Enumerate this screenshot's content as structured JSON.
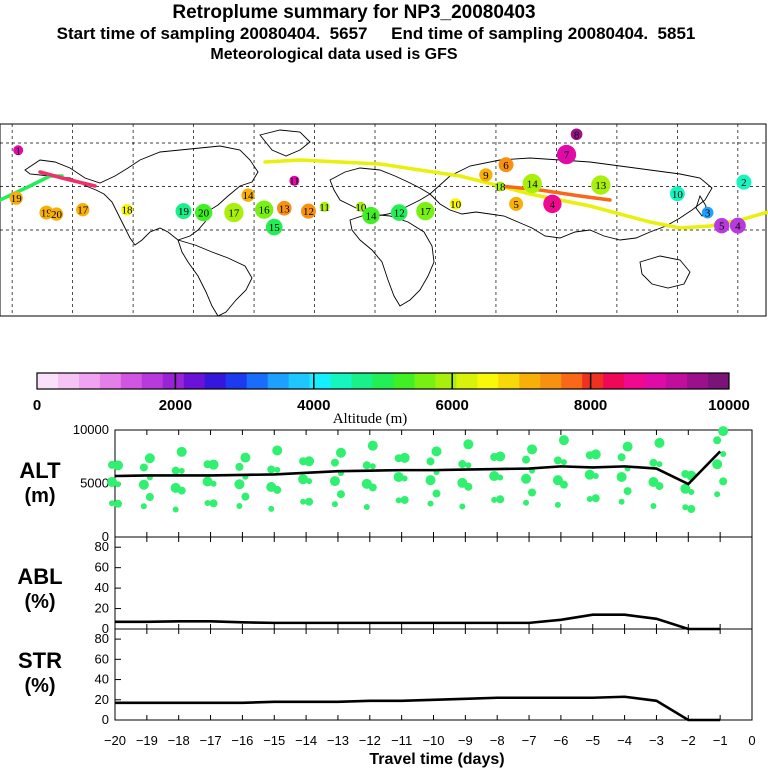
{
  "titles": {
    "line1": "Retroplume summary for NP3_20080403",
    "line2": "Start time of sampling 20080404.  5657     End time of sampling 20080404.  5851",
    "line3": "Meteorological data used is GFS"
  },
  "colorbar": {
    "title": "Altitude (m)",
    "ticks": [
      "0",
      "2000",
      "4000",
      "6000",
      "8000",
      "10000"
    ],
    "colors": [
      "#fbe0fb",
      "#f5c4f5",
      "#efa3f0",
      "#e47ee8",
      "#d055e0",
      "#b83adc",
      "#9a23d6",
      "#6b12d8",
      "#3517dc",
      "#1c3bf0",
      "#1a6cfa",
      "#1ea0ff",
      "#1ec8ff",
      "#14f0ff",
      "#14f5c0",
      "#1af08a",
      "#24ee55",
      "#40f024",
      "#78f012",
      "#a8f00c",
      "#d8f20a",
      "#f8f808",
      "#f8d808",
      "#f8b008",
      "#f89010",
      "#f86818",
      "#f03020",
      "#f00858",
      "#f00890",
      "#e00aa8",
      "#c20e9c",
      "#9c108c",
      "#7a1478"
    ]
  },
  "chart_data": [
    {
      "type": "map-scatter",
      "title": "Retroplume trajectory map",
      "grid_lat": [
        60,
        30,
        0
      ],
      "grid_lon_step": 30,
      "points": [
        {
          "label": "1",
          "lon": -177,
          "lat": 55,
          "alt": 9000
        },
        {
          "label": "19",
          "lon": -178,
          "lat": 22,
          "alt": 7000
        },
        {
          "label": "19",
          "lon": -163,
          "lat": 12,
          "alt": 7200
        },
        {
          "label": "20",
          "lon": -158,
          "lat": 11,
          "alt": 7000
        },
        {
          "label": "17",
          "lon": -145,
          "lat": 14,
          "alt": 7000
        },
        {
          "label": "18",
          "lon": -123,
          "lat": 14,
          "alt": 6500
        },
        {
          "label": "19",
          "lon": -95,
          "lat": 13,
          "alt": 4800
        },
        {
          "label": "20",
          "lon": -85,
          "lat": 12,
          "alt": 5200
        },
        {
          "label": "17",
          "lon": -70,
          "lat": 12,
          "alt": 5800
        },
        {
          "label": "14",
          "lon": -63,
          "lat": 24,
          "alt": 7000
        },
        {
          "label": "16",
          "lon": -55,
          "lat": 14,
          "alt": 5500
        },
        {
          "label": "13",
          "lon": -45,
          "lat": 15,
          "alt": 7400
        },
        {
          "label": "15",
          "lon": -50,
          "lat": 2,
          "alt": 5000
        },
        {
          "label": "12",
          "lon": -33,
          "lat": 13,
          "alt": 7500
        },
        {
          "label": "11",
          "lon": -25,
          "lat": 16,
          "alt": 6000
        },
        {
          "label": "11",
          "lon": -40,
          "lat": 34,
          "alt": 9000
        },
        {
          "label": "10",
          "lon": -7,
          "lat": 16,
          "alt": 6000
        },
        {
          "label": "14",
          "lon": -2,
          "lat": 10,
          "alt": 5200
        },
        {
          "label": "12",
          "lon": 12,
          "lat": 12,
          "alt": 5000
        },
        {
          "label": "17",
          "lon": 25,
          "lat": 13,
          "alt": 5500
        },
        {
          "label": "10",
          "lon": 40,
          "lat": 18,
          "alt": 6500
        },
        {
          "label": "9",
          "lon": 55,
          "lat": 38,
          "alt": 7000
        },
        {
          "label": "6",
          "lon": 65,
          "lat": 45,
          "alt": 7500
        },
        {
          "label": "18",
          "lon": 62,
          "lat": 30,
          "alt": 6000
        },
        {
          "label": "14",
          "lon": 78,
          "lat": 32,
          "alt": 5800
        },
        {
          "label": "5",
          "lon": 70,
          "lat": 18,
          "alt": 7200
        },
        {
          "label": "4",
          "lon": 88,
          "lat": 18,
          "alt": 8500
        },
        {
          "label": "7",
          "lon": 95,
          "lat": 52,
          "alt": 8800
        },
        {
          "label": "13",
          "lon": 112,
          "lat": 31,
          "alt": 5800
        },
        {
          "label": "10",
          "lon": 150,
          "lat": 25,
          "alt": 4500
        },
        {
          "label": "3",
          "lon": 165,
          "lat": 12,
          "alt": 3500
        },
        {
          "label": "5",
          "lon": 172,
          "lat": 3,
          "alt": 1600
        },
        {
          "label": "4",
          "lon": 180,
          "lat": 3,
          "alt": 1800
        },
        {
          "label": "8",
          "lon": 100,
          "lat": 66,
          "alt": 9500
        },
        {
          "label": "2",
          "lon": 183,
          "lat": 33,
          "alt": 4500
        }
      ]
    },
    {
      "type": "line+scatter",
      "title": "ALT",
      "ylabel": "ALT (m)",
      "ylim": [
        0,
        10000
      ],
      "yticks": [
        0,
        5000,
        10000
      ],
      "x": [
        -20,
        -19,
        -18,
        -17,
        -16,
        -15,
        -14,
        -13,
        -12,
        -11,
        -10,
        -9,
        -8,
        -7,
        -6,
        -5,
        -4,
        -3,
        -2,
        -1
      ],
      "values": [
        5700,
        5750,
        5750,
        5750,
        5800,
        5850,
        6000,
        6150,
        6200,
        6250,
        6250,
        6300,
        6350,
        6400,
        6600,
        6500,
        6600,
        6400,
        4950,
        8000
      ],
      "scatter_note": "green plume particle markers at varying altitudes"
    },
    {
      "type": "line",
      "title": "ABL",
      "ylabel": "ABL (%)",
      "ylim": [
        0,
        90
      ],
      "yticks": [
        0,
        20,
        40,
        60,
        80
      ],
      "x": [
        -20,
        -19,
        -18,
        -17,
        -16,
        -15,
        -14,
        -13,
        -12,
        -11,
        -10,
        -9,
        -8,
        -7,
        -6,
        -5,
        -4,
        -3,
        -2,
        -1
      ],
      "values": [
        7,
        7,
        7.5,
        7.5,
        6.5,
        6,
        6,
        6,
        6,
        6,
        6,
        6,
        6,
        6,
        9,
        14,
        14,
        10,
        0,
        0
      ]
    },
    {
      "type": "line",
      "title": "STR",
      "ylabel": "STR (%)",
      "ylim": [
        0,
        90
      ],
      "yticks": [
        0,
        20,
        40,
        60,
        80
      ],
      "x": [
        -20,
        -19,
        -18,
        -17,
        -16,
        -15,
        -14,
        -13,
        -12,
        -11,
        -10,
        -9,
        -8,
        -7,
        -6,
        -5,
        -4,
        -3,
        -2,
        -1
      ],
      "values": [
        17,
        17,
        17,
        17,
        17,
        18,
        18,
        18,
        19,
        19,
        20,
        21,
        22,
        22,
        22,
        22,
        23,
        19,
        0,
        0
      ]
    }
  ],
  "panels": {
    "alt_label": [
      "ALT",
      "(m)"
    ],
    "abl_label": [
      "ABL",
      "(%)"
    ],
    "str_label": [
      "STR",
      "(%)"
    ],
    "xlabel": "Travel time (days)",
    "xticks": [
      "−20",
      "−19",
      "−18",
      "−17",
      "−16",
      "−15",
      "−14",
      "−13",
      "−12",
      "−11",
      "−10",
      "−9",
      "−8",
      "−7",
      "−6",
      "−5",
      "−4",
      "−3",
      "−2",
      "−1",
      "0"
    ]
  }
}
